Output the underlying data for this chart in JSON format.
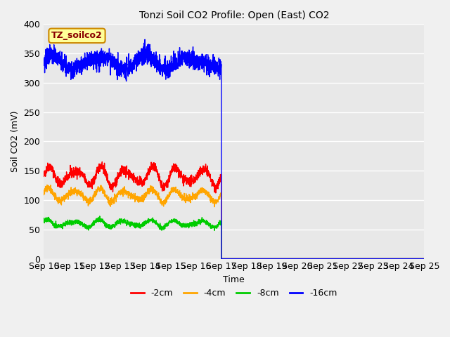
{
  "title": "Tonzi Soil CO2 Profile: Open (East) CO2",
  "ylabel": "Soil CO2 (mV)",
  "xlabel": "Time",
  "ylim": [
    0,
    400
  ],
  "xlim": [
    0,
    15
  ],
  "xtick_labels": [
    "Sep 10",
    "Sep 11",
    "Sep 12",
    "Sep 13",
    "Sep 14",
    "Sep 15",
    "Sep 16",
    "Sep 17",
    "Sep 18",
    "Sep 19",
    "Sep 20",
    "Sep 21",
    "Sep 22",
    "Sep 23",
    "Sep 24",
    "Sep 25"
  ],
  "bg_color": "#e8e8e8",
  "fig_bg_color": "#f0f0f0",
  "grid_color": "#ffffff",
  "line_colors": {
    "red": "#ff0000",
    "orange": "#ffa500",
    "green": "#00cc00",
    "blue": "#0000ff"
  },
  "legend_labels": [
    "-2cm",
    "-4cm",
    "-8cm",
    "-16cm"
  ],
  "legend_colors": [
    "#ff0000",
    "#ffa500",
    "#00cc00",
    "#0000ff"
  ],
  "annotation_label": "TZ_soilco2",
  "annotation_bg": "#ffff99",
  "annotation_border": "#cc8800"
}
